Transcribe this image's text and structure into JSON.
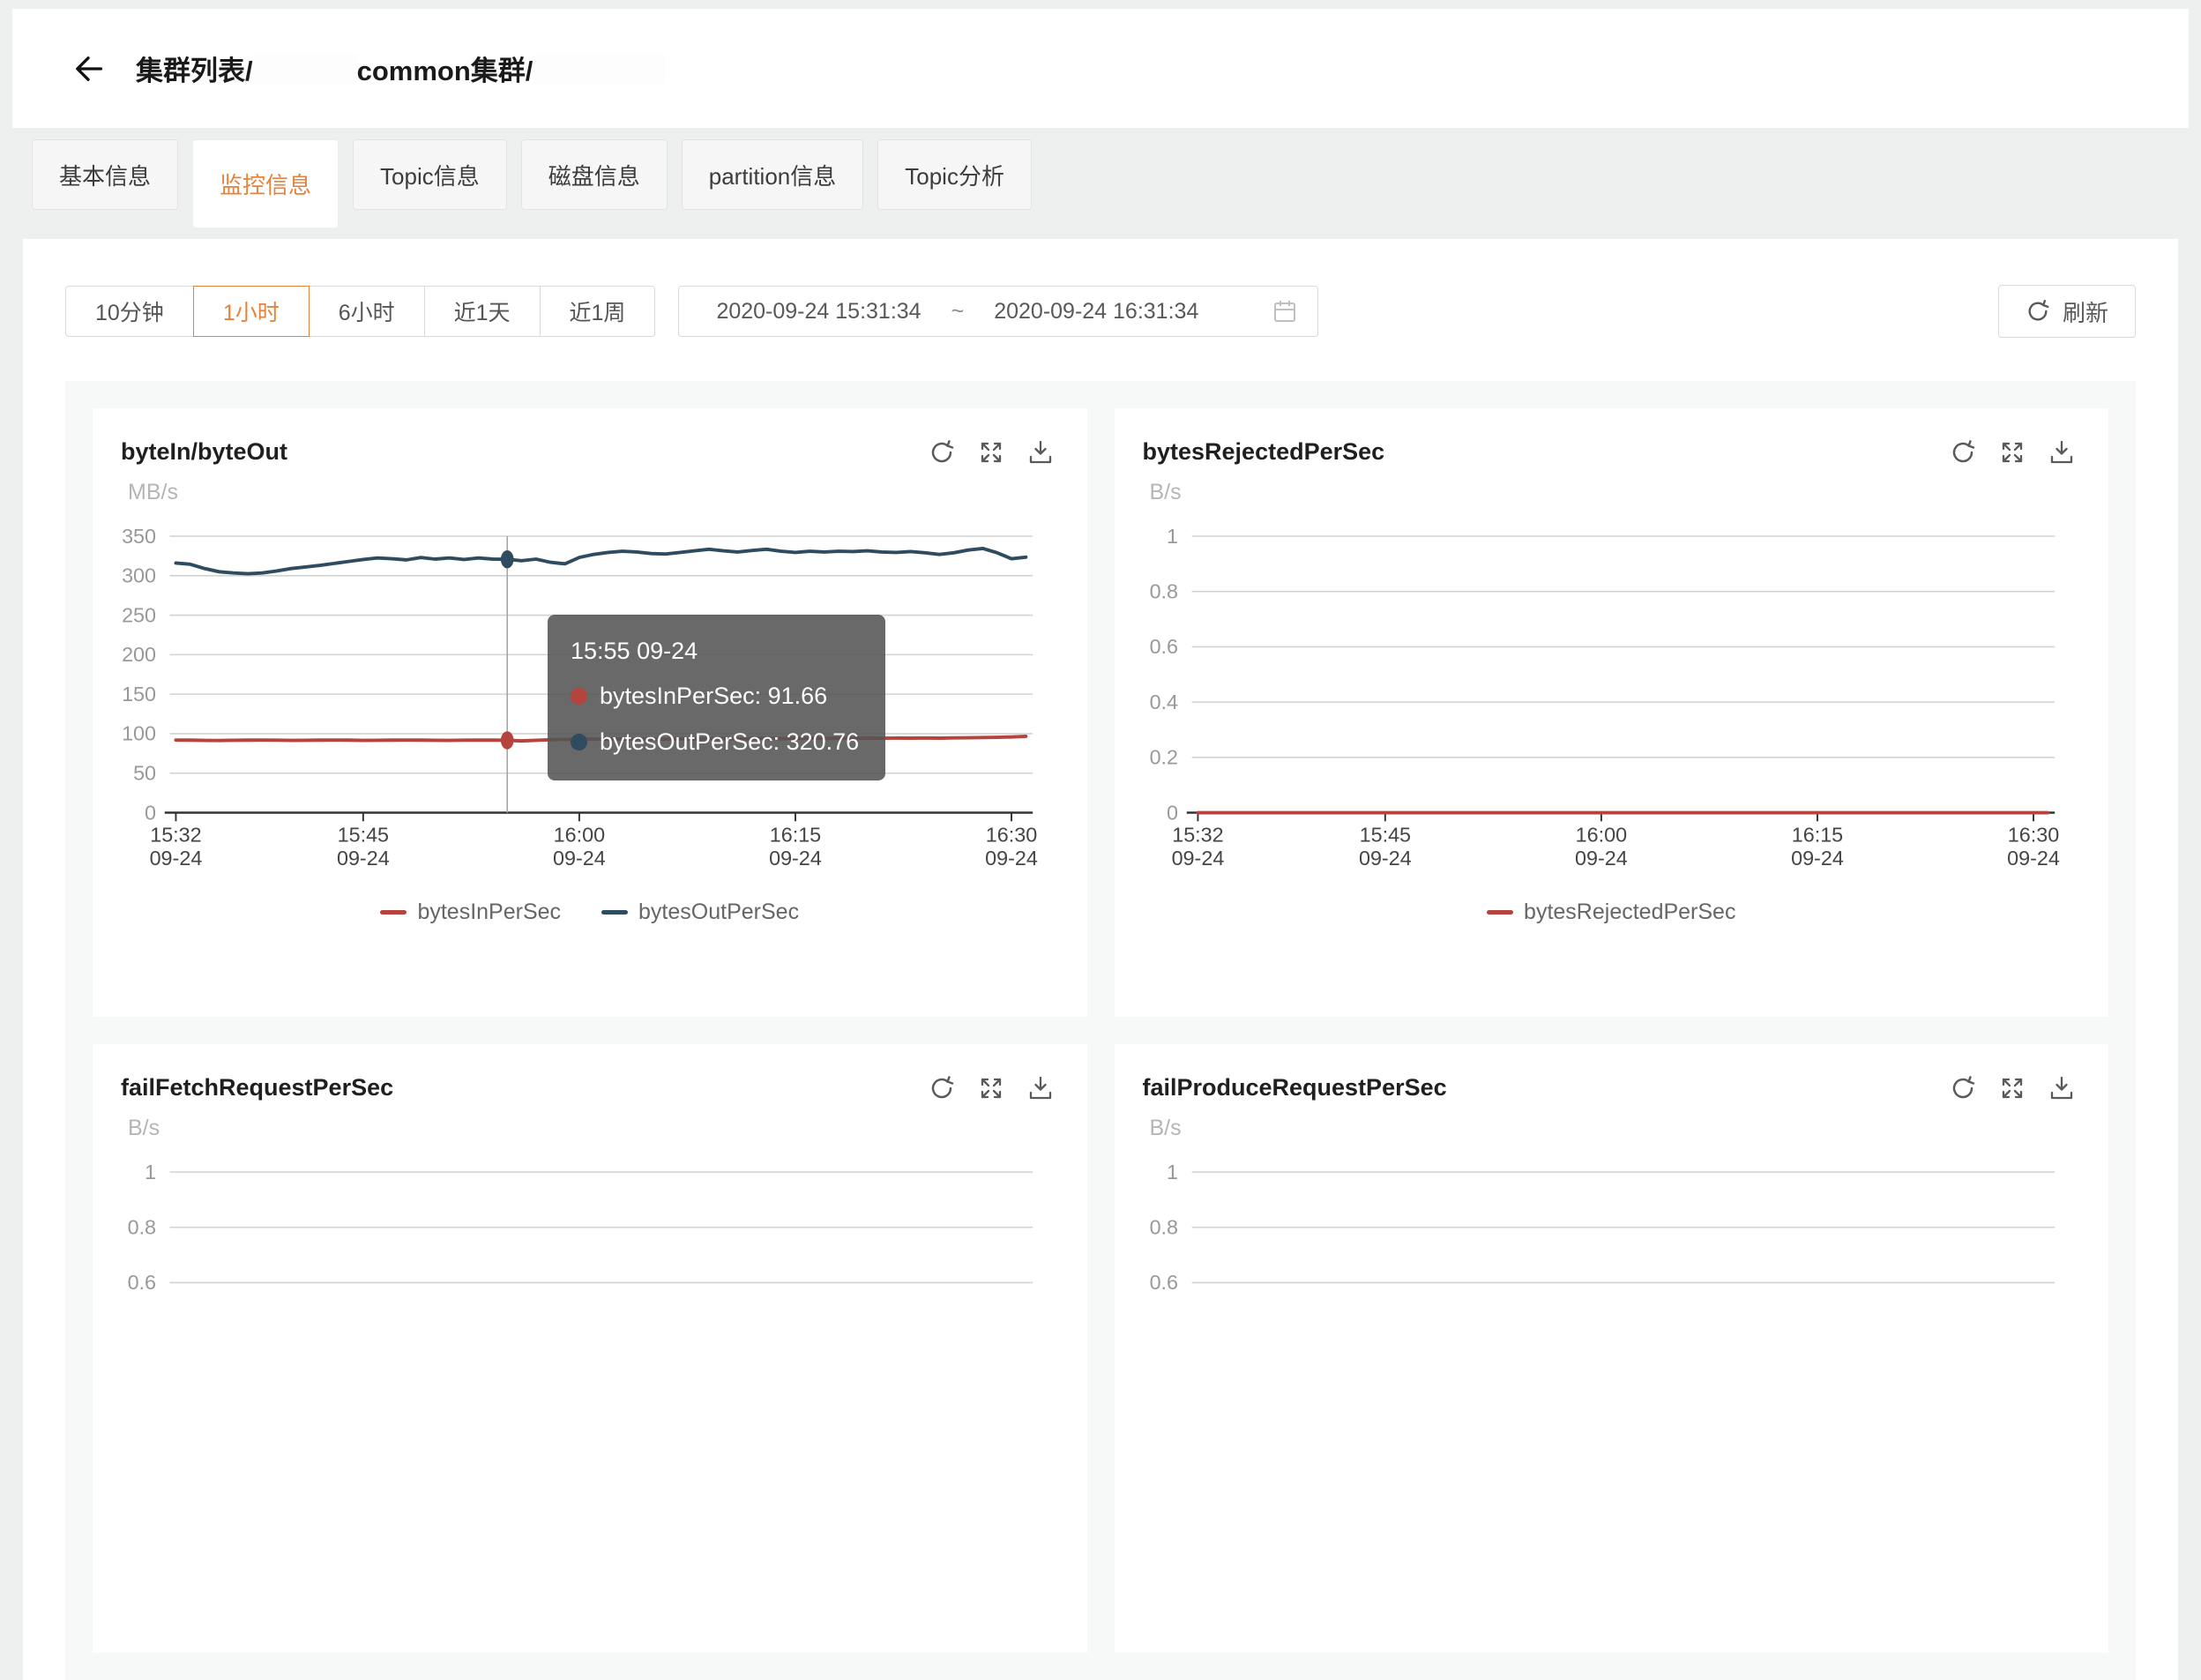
{
  "theme": {
    "accent_orange": "#e8823a",
    "line_red": "#b5433e",
    "line_navy": "#2f4b5f",
    "grid_gray": "#d2d2d2",
    "axis_dark": "#333333",
    "tooltip_bg": "rgba(84,84,84,0.88)"
  },
  "header": {
    "back_icon": "arrow-left",
    "breadcrumb": {
      "part1": "集群列表/",
      "part2": "common集群/"
    }
  },
  "tabs": [
    {
      "key": "basic-info",
      "label": "基本信息",
      "active": false
    },
    {
      "key": "monitor-info",
      "label": "监控信息",
      "active": true
    },
    {
      "key": "topic-info",
      "label": "Topic信息",
      "active": false
    },
    {
      "key": "disk-info",
      "label": "磁盘信息",
      "active": false
    },
    {
      "key": "partition-info",
      "label": "partition信息",
      "active": false
    },
    {
      "key": "topic-analysis",
      "label": "Topic分析",
      "active": false
    }
  ],
  "toolbar": {
    "time_ranges": [
      {
        "key": "10min",
        "label": "10分钟",
        "selected": false
      },
      {
        "key": "1hour",
        "label": "1小时",
        "selected": true
      },
      {
        "key": "6hour",
        "label": "6小时",
        "selected": false
      },
      {
        "key": "1day",
        "label": "近1天",
        "selected": false
      },
      {
        "key": "1week",
        "label": "近1周",
        "selected": false
      }
    ],
    "date_range": {
      "start": "2020-09-24 15:31:34",
      "separator": "~",
      "end": "2020-09-24 16:31:34",
      "calendar_icon": "calendar"
    },
    "refresh_label": "刷新",
    "refresh_icon": "circular-arrow"
  },
  "chart_action_icons": [
    "refresh",
    "fullscreen",
    "download"
  ],
  "chart_data": [
    {
      "key": "bytein-byteout",
      "type": "line",
      "title": "byteIn/byteOut",
      "unit": "MB/s",
      "y_max": 350,
      "y_ticks": [
        350,
        300,
        250,
        200,
        150,
        100,
        50,
        0
      ],
      "x_ticks": [
        {
          "minute": 0,
          "time": "15:32",
          "date": "09-24"
        },
        {
          "minute": 13,
          "time": "15:45",
          "date": "09-24"
        },
        {
          "minute": 28,
          "time": "16:00",
          "date": "09-24"
        },
        {
          "minute": 43,
          "time": "16:15",
          "date": "09-24"
        },
        {
          "minute": 58,
          "time": "16:30",
          "date": "09-24"
        }
      ],
      "series": [
        {
          "name": "bytesInPerSec",
          "color": "#b5433e",
          "values": [
            92,
            91.8,
            91.5,
            91.4,
            91.6,
            91.8,
            92,
            91.7,
            91.5,
            91.6,
            91.8,
            92,
            91.8,
            91.5,
            91.6,
            91.8,
            92,
            91.8,
            91.6,
            91.5,
            91.7,
            91.9,
            92,
            91.66,
            90.9,
            91.6,
            92.3,
            92.7,
            93,
            93.2,
            93,
            93.3,
            93.1,
            93.4,
            93.2,
            93.5,
            93.3,
            93.6,
            93.8,
            93.5,
            93.8,
            94,
            93.8,
            94.1,
            94.2,
            94,
            94.3,
            94.1,
            94.4,
            94.2,
            94.5,
            94.3,
            94.6,
            94.4,
            94.7,
            94.9,
            95.1,
            95.4,
            95.9,
            96.6
          ]
        },
        {
          "name": "bytesOutPerSec",
          "color": "#2f4b5f",
          "values": [
            316,
            314.5,
            309,
            305,
            303.5,
            302.5,
            303.5,
            306,
            309,
            311,
            313,
            315.5,
            318,
            320.5,
            322.5,
            321.5,
            320,
            323,
            321,
            322.5,
            320.5,
            322.5,
            321,
            320.76,
            319,
            321,
            317,
            315,
            323,
            327,
            329.5,
            331,
            330,
            328,
            327.5,
            329.5,
            331.5,
            333.5,
            331.5,
            330,
            332,
            333.5,
            331,
            329.5,
            331,
            330,
            331,
            330.5,
            331.5,
            330,
            329.5,
            330.5,
            329,
            327,
            329,
            332.5,
            334.5,
            329,
            321.5,
            323.5
          ]
        }
      ],
      "crosshair": {
        "minute": 23
      },
      "tooltip": {
        "title": "15:55 09-24",
        "items": [
          {
            "name": "bytesInPerSec",
            "value": "91.66",
            "color": "#b5433e"
          },
          {
            "name": "bytesOutPerSec",
            "value": "320.76",
            "color": "#2f4b5f"
          }
        ]
      }
    },
    {
      "key": "bytes-rejected-per-sec",
      "type": "line",
      "title": "bytesRejectedPerSec",
      "unit": "B/s",
      "y_max": 1,
      "y_ticks": [
        1,
        0.8,
        0.6,
        0.4,
        0.2,
        0
      ],
      "x_ticks": [
        {
          "minute": 0,
          "time": "15:32",
          "date": "09-24"
        },
        {
          "minute": 13,
          "time": "15:45",
          "date": "09-24"
        },
        {
          "minute": 28,
          "time": "16:00",
          "date": "09-24"
        },
        {
          "minute": 43,
          "time": "16:15",
          "date": "09-24"
        },
        {
          "minute": 58,
          "time": "16:30",
          "date": "09-24"
        }
      ],
      "series": [
        {
          "name": "bytesRejectedPerSec",
          "color": "#b5433e",
          "values": [
            0,
            0
          ]
        }
      ]
    },
    {
      "key": "fail-fetch-request-per-sec",
      "type": "line",
      "title": "failFetchRequestPerSec",
      "unit": "B/s",
      "y_max": 1,
      "y_ticks": [
        1,
        0.8,
        0.6
      ],
      "x_ticks": [],
      "series": []
    },
    {
      "key": "fail-produce-request-per-sec",
      "type": "line",
      "title": "failProduceRequestPerSec",
      "unit": "B/s",
      "y_max": 1,
      "y_ticks": [
        1,
        0.8,
        0.6
      ],
      "x_ticks": [],
      "series": []
    }
  ]
}
